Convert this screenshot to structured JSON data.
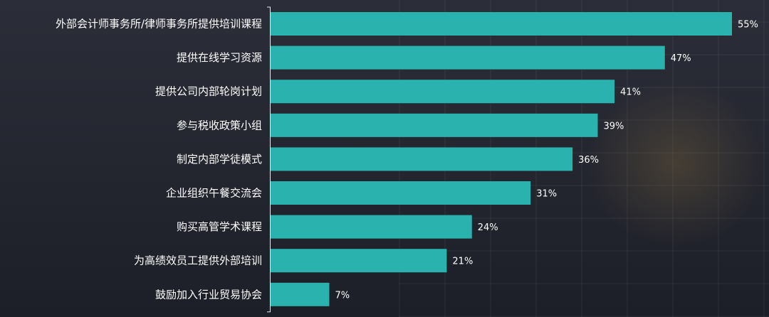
{
  "chart_data": {
    "type": "bar",
    "orientation": "horizontal",
    "categories": [
      "外部会计师事务所/律师事务所提供培训课程",
      "提供在线学习资源",
      "提供公司内部轮岗计划",
      "参与税收政策小组",
      "制定内部学徒模式",
      "企业组织午餐交流会",
      "购买高管学术课程",
      "为高绩效员工提供外部培训",
      "鼓励加入行业贸易协会"
    ],
    "values": [
      55,
      47,
      41,
      39,
      36,
      31,
      24,
      21,
      7
    ],
    "value_labels": [
      "55%",
      "47%",
      "41%",
      "39%",
      "36%",
      "31%",
      "24%",
      "21%",
      "7%"
    ],
    "xlim": [
      0,
      55
    ],
    "bar_color": "#2ab3ae",
    "background_color": "#262833",
    "grid": false
  }
}
